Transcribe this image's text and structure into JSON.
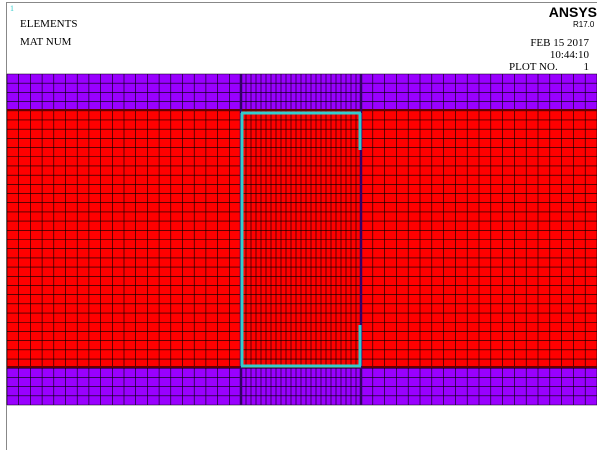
{
  "viewport": {
    "number": "1"
  },
  "labels": {
    "title": "ELEMENTS",
    "subtitle": "MAT NUM"
  },
  "brand": {
    "name": "ANSYS",
    "version": "R17.0"
  },
  "info": {
    "date": "FEB 15 2017",
    "time": "10:44:10",
    "plot_label": "PLOT NO.",
    "plot_number": "1"
  }
}
